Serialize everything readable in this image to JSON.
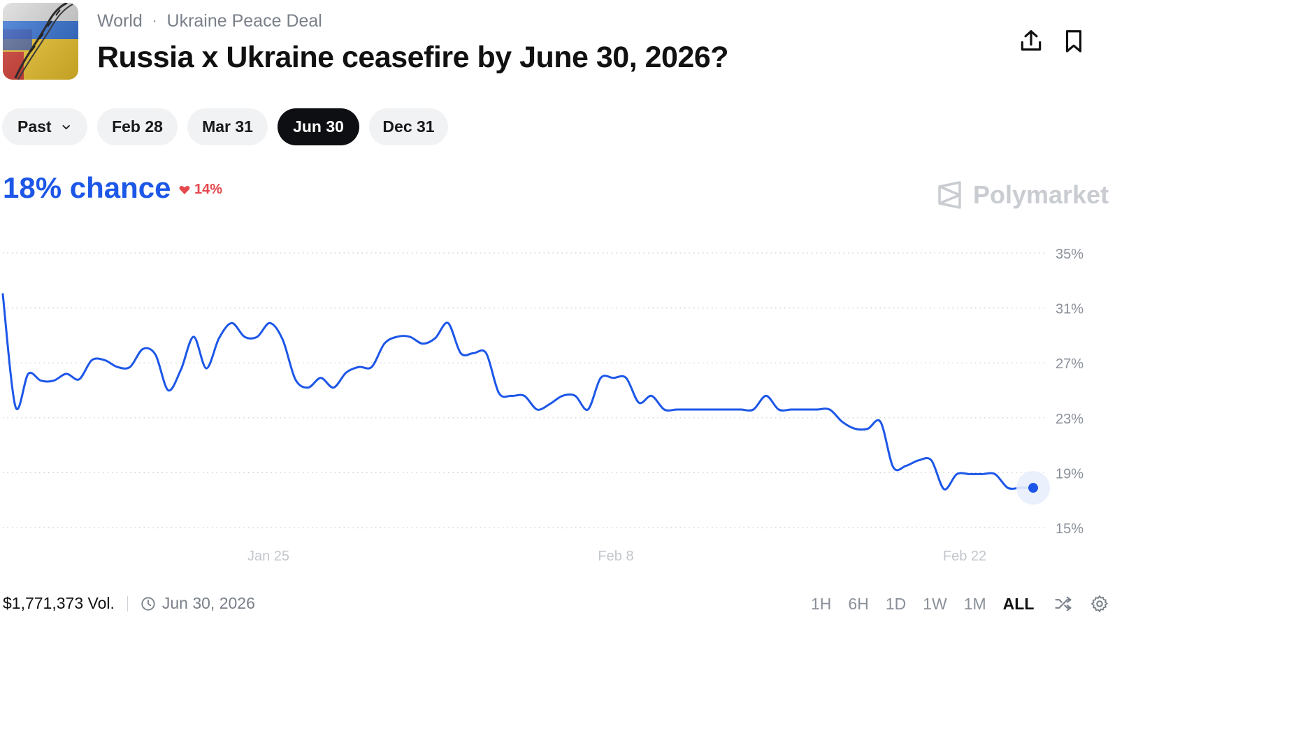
{
  "header": {
    "breadcrumb": [
      "World",
      "Ukraine Peace Deal"
    ],
    "breadcrumb_separator": "·",
    "title": "Russia x Ukraine ceasefire by June 30, 2026?"
  },
  "date_tabs": [
    {
      "label": "Past",
      "dropdown": true,
      "active": false
    },
    {
      "label": "Feb 28",
      "active": false
    },
    {
      "label": "Mar 31",
      "active": false
    },
    {
      "label": "Jun 30",
      "active": true
    },
    {
      "label": "Dec 31",
      "active": false
    }
  ],
  "probability": {
    "label": "18% chance",
    "change": "14%",
    "change_direction": "down",
    "color": "#1d57e8",
    "change_color": "#e5484d"
  },
  "brand": {
    "name": "Polymarket"
  },
  "footer": {
    "volume": "$1,771,373 Vol.",
    "end_date": "Jun 30, 2026",
    "ranges": [
      "1H",
      "6H",
      "1D",
      "1W",
      "1M",
      "ALL"
    ],
    "active_range": "ALL"
  },
  "chart_data": {
    "type": "line",
    "x_tick_labels": [
      "Jan 25",
      "Feb 8",
      "Feb 22"
    ],
    "y_tick_labels": [
      "35%",
      "31%",
      "27%",
      "23%",
      "19%",
      "15%"
    ],
    "ylim": [
      15,
      35
    ],
    "grid": "horizontal-dotted",
    "line_color": "#1d57e8",
    "series": [
      {
        "values": [
          32,
          23.8,
          26.2,
          25.7,
          25.7,
          26.2,
          25.8,
          27.2,
          27.2,
          26.7,
          26.7,
          28.0,
          27.6,
          25.0,
          26.5,
          28.9,
          26.6,
          28.8,
          29.9,
          28.9,
          28.9,
          29.9,
          28.7,
          25.8,
          25.2,
          25.9,
          25.2,
          26.3,
          26.7,
          26.7,
          28.4,
          28.9,
          28.9,
          28.4,
          28.8,
          29.9,
          27.7,
          27.7,
          27.7,
          24.8,
          24.6,
          24.6,
          23.6,
          24.0,
          24.6,
          24.6,
          23.6,
          25.9,
          25.9,
          25.9,
          24.1,
          24.6,
          23.6,
          23.6,
          23.6,
          23.6,
          23.6,
          23.6,
          23.6,
          23.6,
          24.6,
          23.6,
          23.6,
          23.6,
          23.6,
          23.6,
          22.7,
          22.2,
          22.2,
          22.7,
          19.4,
          19.5,
          19.9,
          19.9,
          17.8,
          18.9,
          18.9,
          18.9,
          18.9,
          17.9,
          17.9,
          17.9
        ]
      }
    ]
  }
}
